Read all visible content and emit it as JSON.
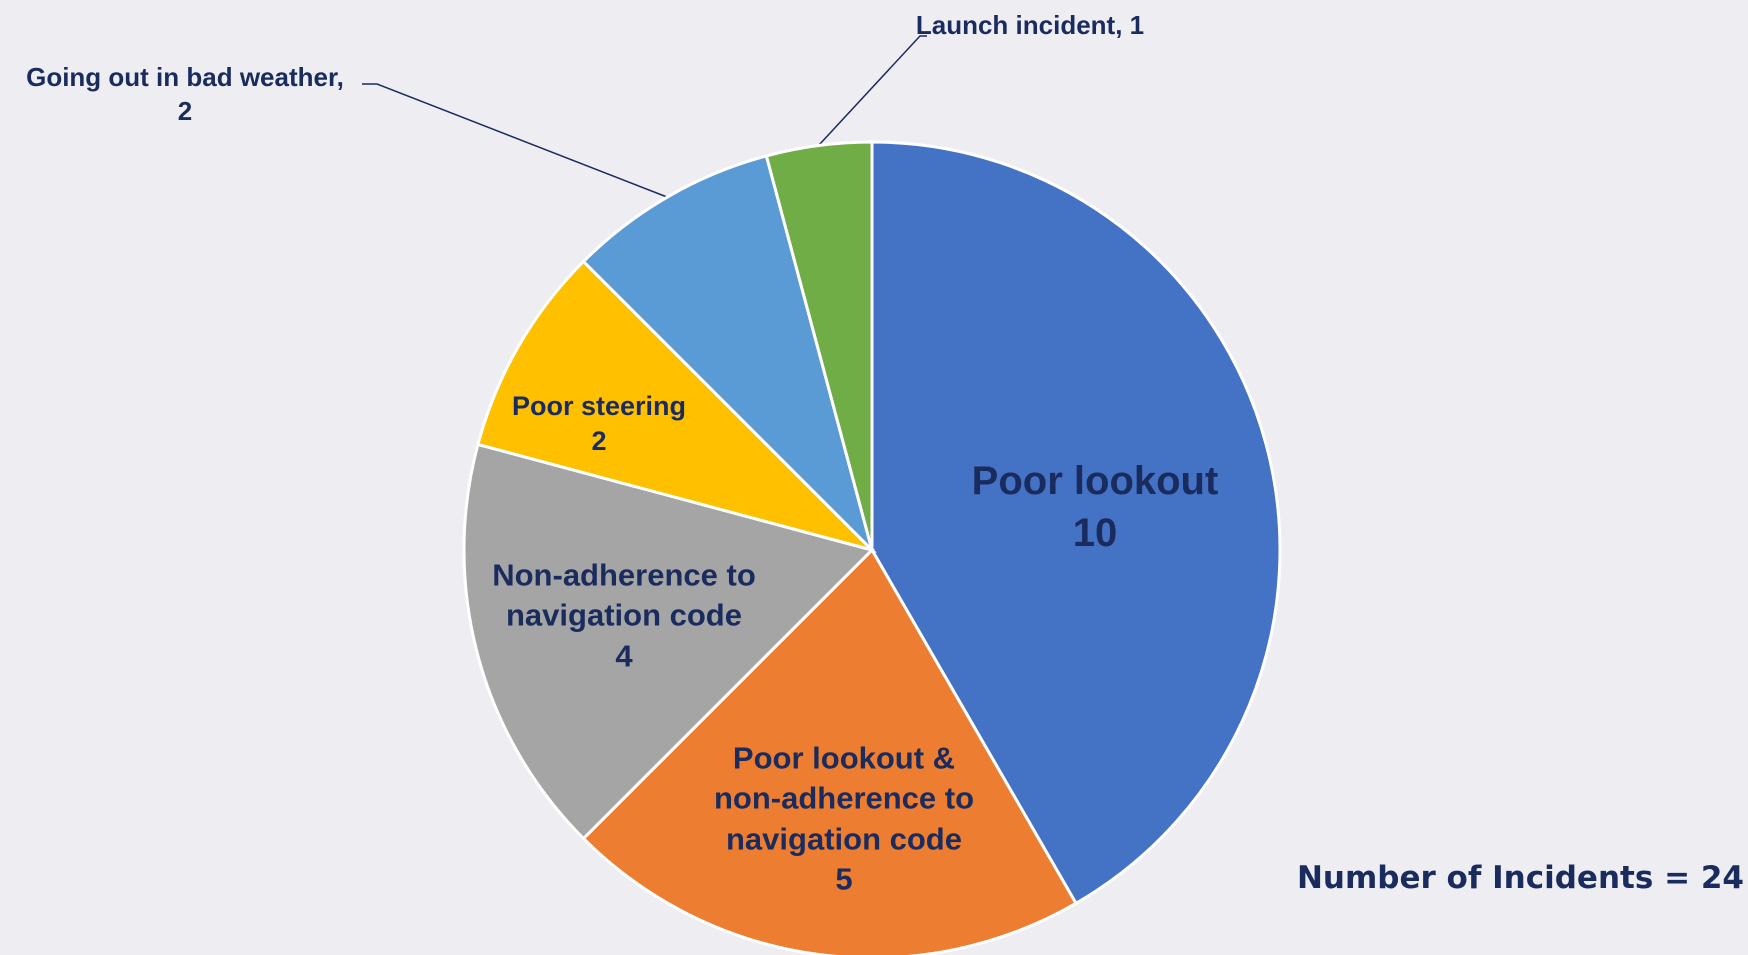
{
  "chart_data": {
    "type": "pie",
    "categories": [
      "Poor lookout",
      "Poor lookout & non-adherence to navigation code",
      "Non-adherence to navigation code",
      "Poor steering",
      "Going out in bad weather,",
      "Launch incident,"
    ],
    "values": [
      10,
      5,
      4,
      2,
      2,
      1
    ],
    "colors": [
      "#4472c4",
      "#ed7d31",
      "#a5a5a5",
      "#ffc000",
      "#5b9bd5",
      "#70ad47"
    ],
    "annotation": "Number of Incidents = 24"
  }
}
